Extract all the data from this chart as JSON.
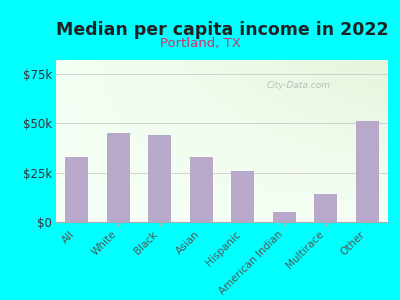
{
  "title": "Median per capita income in 2022",
  "subtitle": "Portland, TX",
  "categories": [
    "All",
    "White",
    "Black",
    "Asian",
    "Hispanic",
    "American Indian",
    "Multirace",
    "Other"
  ],
  "values": [
    33000,
    45000,
    44000,
    33000,
    26000,
    5000,
    14000,
    51000
  ],
  "bar_color": "#b8a8cc",
  "background_outer": "#00ffff",
  "title_color": "#222222",
  "subtitle_color": "#cc3366",
  "ylabel_ticks": [
    0,
    25000,
    50000,
    75000
  ],
  "ylabel_labels": [
    "$0",
    "$25k",
    "$50k",
    "$75k"
  ],
  "ylim": [
    0,
    82000
  ],
  "watermark": "City-Data.com",
  "title_fontsize": 12.5,
  "subtitle_fontsize": 9.5,
  "tick_fontsize": 7.5,
  "ytick_fontsize": 8.5,
  "bar_width": 0.55
}
